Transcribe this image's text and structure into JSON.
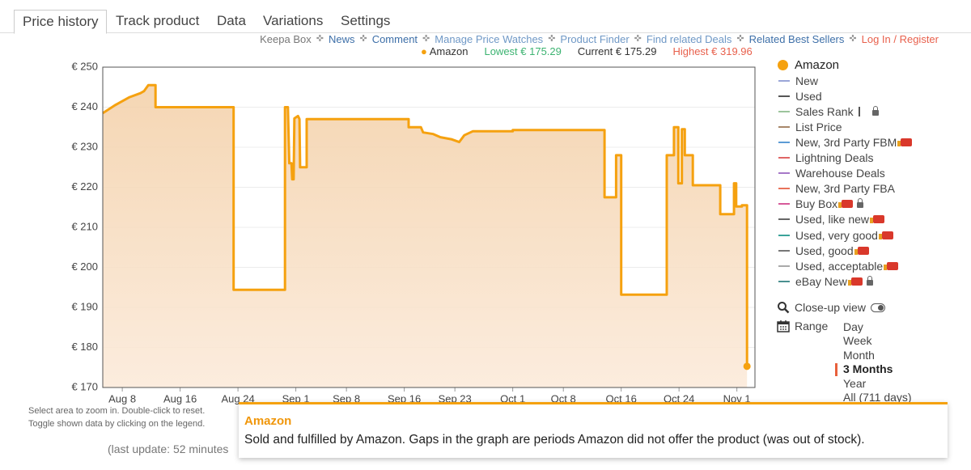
{
  "tabs": [
    "Price history",
    "Track product",
    "Data",
    "Variations",
    "Settings"
  ],
  "links": [
    "Keepa Box",
    "News",
    "Comment",
    "Manage Price Watches",
    "Product Finder",
    "Find related Deals",
    "Related Best Sellers",
    "Log In / Register"
  ],
  "stats": {
    "series": "Amazon",
    "lowest": "Lowest € 175.29",
    "current": "Current € 175.29",
    "highest": "Highest € 319.96"
  },
  "chart_data": {
    "type": "line",
    "x": [
      5.3,
      7,
      9,
      10.5,
      11,
      11.6,
      12.6,
      12.6,
      23.4,
      23.4,
      30.5,
      30.5,
      30.9,
      31.1,
      31.4,
      31.5,
      31.7,
      31.8,
      32.3,
      32.5,
      32.6,
      33.5,
      33.5,
      47.6,
      47.6,
      49.3,
      49.6,
      51,
      52,
      53.5,
      54.6,
      55.3,
      56.5,
      62,
      62,
      74.7,
      74.7,
      76.3,
      76.3,
      77,
      77,
      83.3,
      83.3,
      84.3,
      84.3,
      84.9,
      84.9,
      85.4,
      85.4,
      85.8,
      85.8,
      86.9,
      86.9,
      90.7,
      90.7,
      92.6,
      92.6,
      92.9,
      92.9,
      93.7,
      93.7,
      94.4,
      94.4
    ],
    "series": [
      {
        "name": "Amazon",
        "color": "#f5a10f",
        "values": [
          238.5,
          240.5,
          242.5,
          243.5,
          244,
          245.5,
          245.5,
          240,
          240,
          194.4,
          194.4,
          240,
          240,
          226,
          226,
          222,
          222,
          237.2,
          237.8,
          237,
          225,
          225,
          237,
          237,
          235,
          235,
          233.7,
          233.3,
          232.5,
          232,
          231.3,
          233,
          234,
          234,
          234.3,
          234.3,
          217.5,
          217.5,
          228,
          228,
          193.2,
          193.2,
          228,
          228,
          235,
          235,
          221,
          221,
          234.5,
          234.5,
          228,
          228,
          220.5,
          220.5,
          213.3,
          213.3,
          221,
          221,
          215.2,
          215.2,
          215.5,
          215.5,
          175.29
        ]
      }
    ],
    "xlim": [
      5.3,
      95.5
    ],
    "xticks": [
      {
        "value": 8,
        "label": "Aug 8"
      },
      {
        "value": 16,
        "label": "Aug 16"
      },
      {
        "value": 24,
        "label": "Aug 24"
      },
      {
        "value": 32,
        "label": "Sep 1"
      },
      {
        "value": 39,
        "label": "Sep 8"
      },
      {
        "value": 47,
        "label": "Sep 16"
      },
      {
        "value": 54,
        "label": "Sep 23"
      },
      {
        "value": 62,
        "label": "Oct 1"
      },
      {
        "value": 69,
        "label": "Oct 8"
      },
      {
        "value": 77,
        "label": "Oct 16"
      },
      {
        "value": 85,
        "label": "Oct 24"
      },
      {
        "value": 93,
        "label": "Nov 1"
      }
    ],
    "ylim": [
      170,
      250
    ],
    "yticks": [
      {
        "value": 170,
        "label": "€ 170"
      },
      {
        "value": 180,
        "label": "€ 180"
      },
      {
        "value": 190,
        "label": "€ 190"
      },
      {
        "value": 200,
        "label": "€ 200"
      },
      {
        "value": 210,
        "label": "€ 210"
      },
      {
        "value": 220,
        "label": "€ 220"
      },
      {
        "value": 230,
        "label": "€ 230"
      },
      {
        "value": 240,
        "label": "€ 240"
      },
      {
        "value": 250,
        "label": "€ 250"
      }
    ],
    "grid": true
  },
  "legend": [
    {
      "name": "New",
      "color": "#9aa6d8"
    },
    {
      "name": "Used",
      "color": "#555555"
    },
    {
      "name": "Sales Rank",
      "color": "#9cc49c"
    },
    {
      "name": "List Price",
      "color": "#a8876a"
    },
    {
      "name": "New, 3rd Party FBM",
      "color": "#5b9bd5"
    },
    {
      "name": "Lightning Deals",
      "color": "#e06666"
    },
    {
      "name": "Warehouse Deals",
      "color": "#a678c8"
    },
    {
      "name": "New, 3rd Party FBA",
      "color": "#e8735a"
    },
    {
      "name": "Buy Box",
      "color": "#d65a9a"
    },
    {
      "name": "Used, like new",
      "color": "#666666"
    },
    {
      "name": "Used, very good",
      "color": "#3aa39a"
    },
    {
      "name": "Used, good",
      "color": "#777777"
    },
    {
      "name": "Used, acceptable",
      "color": "#aaaaaa"
    },
    {
      "name": "eBay New",
      "color": "#4a9090"
    }
  ],
  "controls": {
    "closeup": "Close-up view",
    "range": "Range",
    "range_options": [
      "Day",
      "Week",
      "Month",
      "3 Months",
      "Year",
      "All (711 days)"
    ]
  },
  "hints": [
    "Select area to zoom in. Double-click to reset.",
    "Toggle shown data by clicking on the legend."
  ],
  "last_update": "(last update: 52 minutes",
  "tooltip": {
    "title": "Amazon",
    "text": "Sold and fulfilled by Amazon. Gaps in the graph are periods Amazon did not offer the product (was out of stock)."
  }
}
